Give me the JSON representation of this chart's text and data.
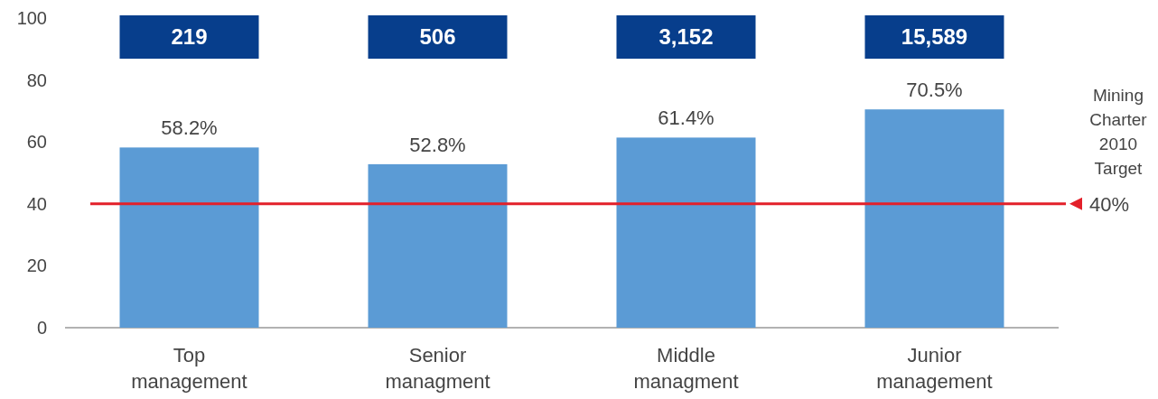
{
  "chart_data": {
    "type": "bar",
    "categories": [
      "Top management",
      "Senior managment",
      "Middle managment",
      "Junior management"
    ],
    "values": [
      58.2,
      52.8,
      61.4,
      70.5
    ],
    "color": "#5b9bd5",
    "value_labels": [
      "58.2%",
      "52.8%",
      "61.4%",
      "70.5%"
    ],
    "ylim": [
      0,
      100
    ],
    "yticks": [
      0,
      20,
      40,
      60,
      80,
      100
    ],
    "grid": false,
    "ref_lines": [
      {
        "axis": "y",
        "value": 40,
        "label": "40%",
        "color": "#e3202a"
      }
    ],
    "annotations": [
      "219",
      "506",
      "3,152",
      "15,589",
      "Mining Charter 2010 Target"
    ]
  }
}
